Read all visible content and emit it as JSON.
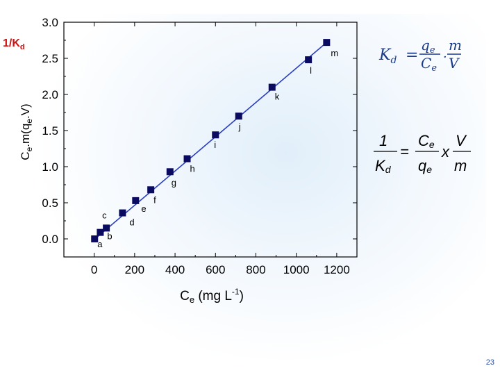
{
  "corner_label": {
    "main": "1/K",
    "sub": "d"
  },
  "equations": {
    "kd_lhs": "K",
    "kd_lhs_sub": "d",
    "kd_qe": "q",
    "kd_qe_sub": "e",
    "kd_ce": "C",
    "kd_ce_sub": "e",
    "kd_m": "m",
    "kd_v": "V",
    "inv_one": "1",
    "inv_kd": "K",
    "inv_kd_sub": "d",
    "inv_ce": "C",
    "inv_ce_sub": "e",
    "inv_qe": "q",
    "inv_qe_sub": "e",
    "inv_x": "x",
    "inv_v": "V",
    "inv_m": "m"
  },
  "page_number": "23",
  "chart_data": {
    "type": "scatter",
    "xlabel": {
      "main": "C",
      "sub": "e",
      "rest": " (mg L",
      "sup": "-1",
      "end": ")"
    },
    "ylabel": {
      "a": "C",
      "a_sub": "e",
      "b": ".m(q",
      "b_sub": "e",
      "c": ".V)"
    },
    "xlim": [
      -150,
      1300
    ],
    "ylim": [
      -0.25,
      3.0
    ],
    "xticks": [
      0,
      200,
      400,
      600,
      800,
      1000,
      1200
    ],
    "xtick_labels": [
      "0",
      "200",
      "400",
      "600",
      "800",
      "1000",
      "1200"
    ],
    "yticks": [
      0.0,
      0.5,
      1.0,
      1.5,
      2.0,
      2.5,
      3.0
    ],
    "ytick_labels": [
      "0.0",
      "0.5",
      "1.0",
      "1.5",
      "2.0",
      "2.5",
      "3.0"
    ],
    "grid": false,
    "points": [
      {
        "label": "a",
        "x": 2,
        "y": 0.0
      },
      {
        "label": "b",
        "x": 30,
        "y": 0.09
      },
      {
        "label": "c",
        "x": 60,
        "y": 0.15
      },
      {
        "label": "d",
        "x": 140,
        "y": 0.36
      },
      {
        "label": "e",
        "x": 205,
        "y": 0.53
      },
      {
        "label": "f",
        "x": 280,
        "y": 0.68
      },
      {
        "label": "g",
        "x": 375,
        "y": 0.93
      },
      {
        "label": "h",
        "x": 460,
        "y": 1.11
      },
      {
        "label": "i",
        "x": 600,
        "y": 1.44
      },
      {
        "label": "j",
        "x": 715,
        "y": 1.7
      },
      {
        "label": "k",
        "x": 880,
        "y": 2.1
      },
      {
        "label": "l",
        "x": 1060,
        "y": 2.48
      },
      {
        "label": "m",
        "x": 1150,
        "y": 2.72
      }
    ],
    "fit_line": {
      "x": [
        0,
        1150
      ],
      "y": [
        -0.01,
        2.72
      ]
    },
    "colors": {
      "marker": "#0a0a60",
      "line": "#2a3fbf",
      "axis": "#000000"
    }
  }
}
